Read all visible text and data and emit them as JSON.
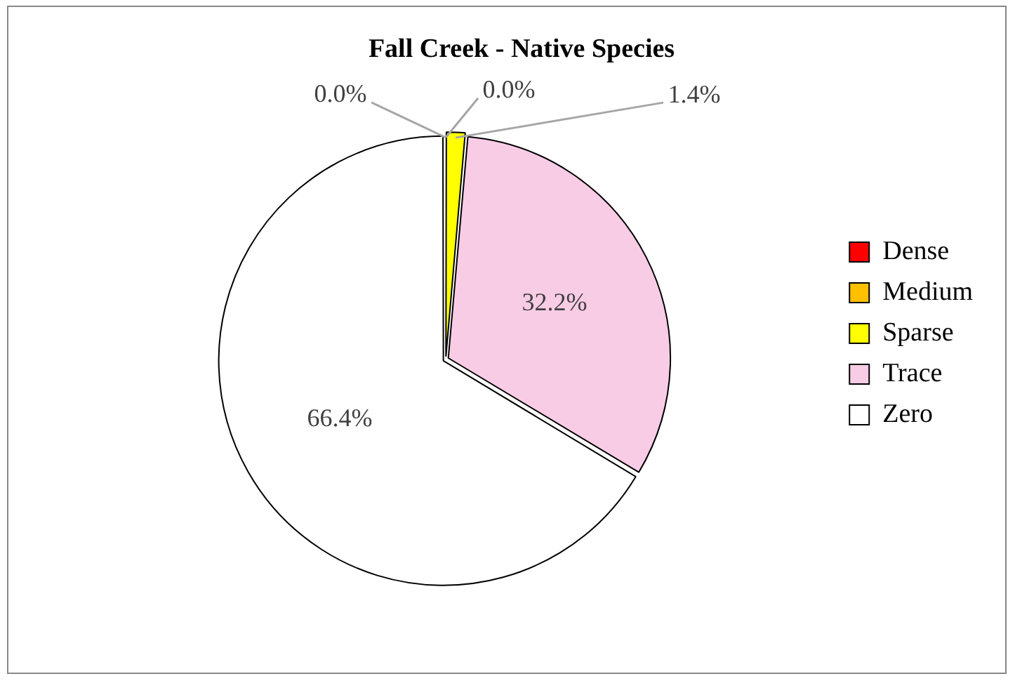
{
  "chart_data": {
    "type": "pie",
    "title": "Fall Creek - Native Species",
    "categories": [
      "Dense",
      "Medium",
      "Sparse",
      "Trace",
      "Zero"
    ],
    "values": [
      0.0,
      0.0,
      1.4,
      32.2,
      66.4
    ],
    "value_labels": [
      "0.0%",
      "0.0%",
      "1.4%",
      "32.2%",
      "66.4%"
    ],
    "colors": [
      "#ff0000",
      "#ffc000",
      "#ffff00",
      "#f9cce6",
      "#ffffff"
    ],
    "legend": "right"
  }
}
